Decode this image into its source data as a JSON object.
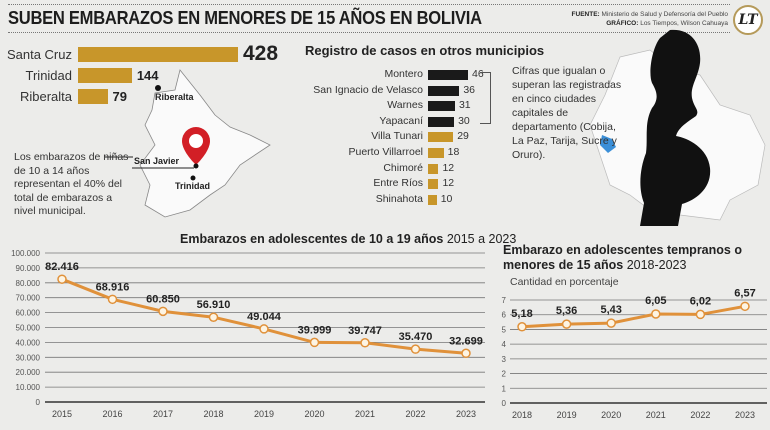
{
  "header": {
    "title": "SUBEN EMBARAZOS EN MENORES DE 15 AÑOS EN BOLIVIA",
    "source_label": "FUENTE:",
    "source": "Ministerio de Salud y Defensoría del Pueblo",
    "graphic_label": "GRÁFICO:",
    "graphic": "Los Tiempos, Wilson Cahuaya",
    "logo": "LT"
  },
  "top_cities": {
    "items": [
      {
        "label": "Santa Cruz",
        "value": 428
      },
      {
        "label": "Trinidad",
        "value": 144
      },
      {
        "label": "Riberalta",
        "value": 79
      }
    ],
    "color": "#c8962a"
  },
  "map": {
    "labels": {
      "riberalta": "Riberalta",
      "san_javier": "San Javier",
      "trinidad": "Trinidad"
    },
    "pin_color": "#d21f26"
  },
  "note": "Los embarazos de niñas de 10 a 14 años representan el 40% del total de embarazos a nivel municipal.",
  "municipios": {
    "title": "Registro de casos en otros municipios",
    "items": [
      {
        "label": "Montero",
        "value": 46,
        "color": "#1a1a1a"
      },
      {
        "label": "San Ignacio de Velasco",
        "value": 36,
        "color": "#1a1a1a"
      },
      {
        "label": "Warnes",
        "value": 31,
        "color": "#1a1a1a"
      },
      {
        "label": "Yapacaní",
        "value": 30,
        "color": "#1a1a1a"
      },
      {
        "label": "Villa Tunari",
        "value": 29,
        "color": "#c8962a"
      },
      {
        "label": "Puerto Villarroel",
        "value": 18,
        "color": "#c8962a"
      },
      {
        "label": "Chimoré",
        "value": 12,
        "color": "#c8962a"
      },
      {
        "label": "Entre Ríos",
        "value": 12,
        "color": "#c8962a"
      },
      {
        "label": "Shinahota",
        "value": 10,
        "color": "#c8962a"
      }
    ],
    "note": "Cifras que igualan o superan las registradas en cinco ciudades capitales de departamento (Cobija, La Paz, Tarija, Sucre y Oruro)."
  },
  "chart_data": [
    {
      "type": "line",
      "title": "Embarazos en adolescentes de 10 a 19 años",
      "subtitle": "2015 a 2023",
      "x": [
        "2015",
        "2016",
        "2017",
        "2018",
        "2019",
        "2020",
        "2021",
        "2022",
        "2023"
      ],
      "values": [
        82416,
        68916,
        60850,
        56910,
        49044,
        39999,
        39747,
        35470,
        32699
      ],
      "labels": [
        "82.416",
        "68.916",
        "60.850",
        "56.910",
        "49.044",
        "39.999",
        "39.747",
        "35.470",
        "32.699"
      ],
      "yticks": [
        "0",
        "10.000",
        "20.000",
        "30.000",
        "40.000",
        "50.000",
        "60.000",
        "70.000",
        "80.000",
        "90.000",
        "100.000"
      ],
      "ylim": [
        0,
        100000
      ],
      "grid": true,
      "color": "#e0913a"
    },
    {
      "type": "line",
      "title": "Embarazo en adolescentes tempranos o menores de 15 años",
      "subtitle": "2018-2023",
      "ylabel": "Cantidad en porcentaje",
      "x": [
        "2018",
        "2019",
        "2020",
        "2021",
        "2022",
        "2023"
      ],
      "values": [
        5.18,
        5.36,
        5.43,
        6.05,
        6.02,
        6.57
      ],
      "labels": [
        "5,18",
        "5,36",
        "5,43",
        "6,05",
        "6,02",
        "6,57"
      ],
      "yticks": [
        "0",
        "1",
        "2",
        "3",
        "4",
        "5",
        "6",
        "7"
      ],
      "ylim": [
        0,
        7
      ],
      "grid": true,
      "color": "#e0913a"
    }
  ]
}
